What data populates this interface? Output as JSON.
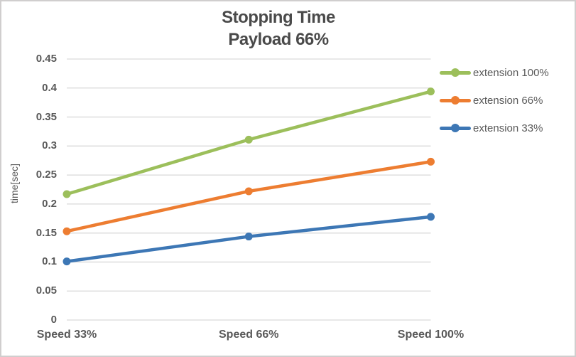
{
  "chart_data": {
    "type": "line",
    "title": "Stopping Time",
    "subtitle": "Payload 66%",
    "xlabel": "",
    "ylabel": "time[sec]",
    "categories": [
      "Speed 33%",
      "Speed 66%",
      "Speed 100%"
    ],
    "series": [
      {
        "name": "extension 100%",
        "color": "#9cbf5b",
        "values": [
          0.217,
          0.311,
          0.394
        ]
      },
      {
        "name": "extension 66%",
        "color": "#ed7d31",
        "values": [
          0.153,
          0.222,
          0.273
        ]
      },
      {
        "name": "extension 33%",
        "color": "#3d77b5",
        "values": [
          0.101,
          0.144,
          0.178
        ]
      }
    ],
    "ylim": [
      0,
      0.45
    ],
    "ytick_step": 0.05,
    "grid": true,
    "gridline_color": "#d9d9d9",
    "legend_position": "right",
    "marker": "circle",
    "line_width": 4.5,
    "marker_radius": 5.5
  }
}
